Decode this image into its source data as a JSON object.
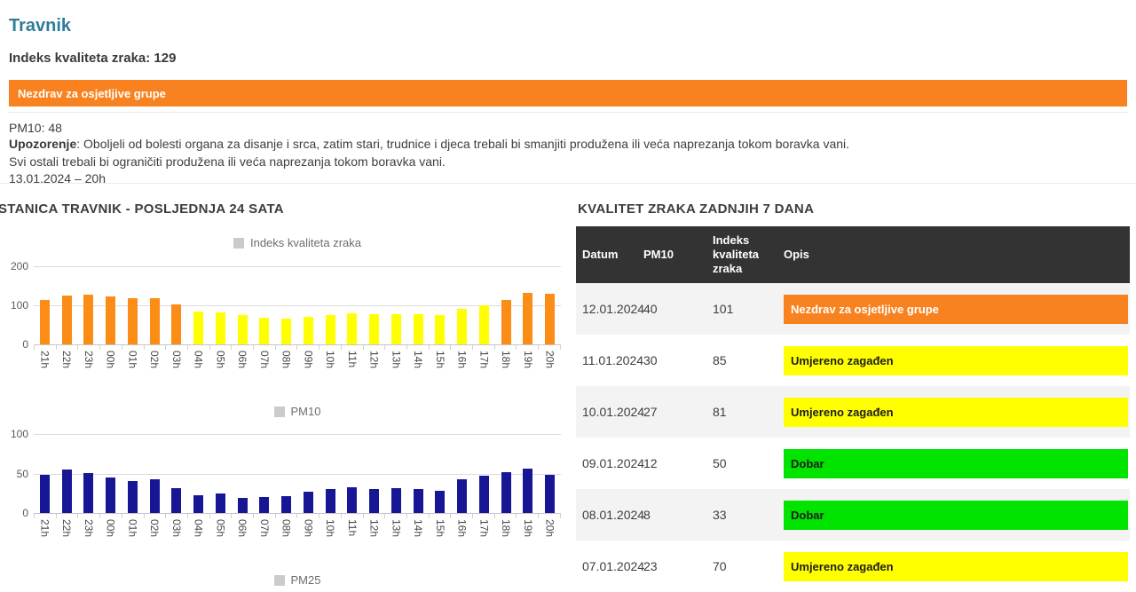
{
  "page": {
    "title": "Travnik",
    "index_label": "Indeks kvaliteta zraka: 129",
    "status_banner": "Nezdrav za osjetljive grupe",
    "pm10_line": "PM10: 48",
    "warning_label": "Upozorenje",
    "warning_text": ": Oboljeli od bolesti organa za disanje i srca, zatim stari, trudnice i djeca trebali bi smanjiti produžena ili veća naprezanja tokom boravka vani.",
    "warning_line2": "Svi ostali trebali bi ograničiti produžena ili veća naprezanja tokom boravka vani.",
    "timestamp": "13.01.2024 – 20h"
  },
  "charts_section": {
    "title": "STANICA TRAVNIK - POSLJEDNJA 24 SATA"
  },
  "chart_data": [
    {
      "type": "bar",
      "legend": "Indeks kvaliteta zraka",
      "x": [
        "21h",
        "22h",
        "23h",
        "00h",
        "01h",
        "02h",
        "03h",
        "04h",
        "05h",
        "06h",
        "07h",
        "08h",
        "09h",
        "10h",
        "11h",
        "12h",
        "13h",
        "14h",
        "15h",
        "16h",
        "17h",
        "18h",
        "19h",
        "20h"
      ],
      "values": [
        113,
        125,
        128,
        123,
        119,
        118,
        103,
        85,
        81,
        74,
        69,
        66,
        70,
        75,
        79,
        78,
        77,
        77,
        74,
        90,
        99,
        113,
        131,
        129
      ],
      "ylim": [
        0,
        200
      ],
      "yticks": [
        200,
        100,
        0
      ],
      "grid": true,
      "legend_position": "top",
      "color_rule": {
        "threshold": 100,
        "above": "bar_orange",
        "below": "bar_yellow"
      }
    },
    {
      "type": "bar",
      "legend": "PM10",
      "x": [
        "21h",
        "22h",
        "23h",
        "00h",
        "01h",
        "02h",
        "03h",
        "04h",
        "05h",
        "06h",
        "07h",
        "08h",
        "09h",
        "10h",
        "11h",
        "12h",
        "13h",
        "14h",
        "15h",
        "16h",
        "17h",
        "18h",
        "19h",
        "20h"
      ],
      "values": [
        48,
        55,
        50,
        45,
        40,
        43,
        31,
        23,
        25,
        19,
        20,
        21,
        27,
        30,
        33,
        30,
        31,
        30,
        28,
        43,
        47,
        52,
        56,
        48
      ],
      "ylim": [
        0,
        100
      ],
      "yticks": [
        100,
        50,
        0
      ],
      "grid": true,
      "legend_position": "top",
      "color": "bar_navy"
    },
    {
      "type": "bar",
      "legend": "PM25",
      "note": "chart cut off at bottom edge of viewport; only legend visible"
    }
  ],
  "table_section": {
    "title": "KVALITET ZRAKA ZADNJIH 7 DANA",
    "columns": [
      "Datum",
      "PM10",
      "Indeks kvaliteta zraka",
      "Opis"
    ],
    "rows": [
      {
        "date": "12.01.2024",
        "pm10": "40",
        "index": "101",
        "desc": "Nezdrav za osjetljive grupe",
        "level": "usg"
      },
      {
        "date": "11.01.2024",
        "pm10": "30",
        "index": "85",
        "desc": "Umjereno zagađen",
        "level": "moderate"
      },
      {
        "date": "10.01.2024",
        "pm10": "27",
        "index": "81",
        "desc": "Umjereno zagađen",
        "level": "moderate"
      },
      {
        "date": "09.01.2024",
        "pm10": "12",
        "index": "50",
        "desc": "Dobar",
        "level": "good"
      },
      {
        "date": "08.01.2024",
        "pm10": "8",
        "index": "33",
        "desc": "Dobar",
        "level": "good"
      },
      {
        "date": "07.01.2024",
        "pm10": "23",
        "index": "70",
        "desc": "Umjereno zagađen",
        "level": "moderate"
      }
    ]
  },
  "colors": {
    "heading_teal": "#2e7d96",
    "banner_orange": "#f8821f",
    "aqi_usg": "#f8821f",
    "aqi_moderate": "#ffff00",
    "aqi_good": "#00e400",
    "bar_orange": "#fb8c15",
    "bar_yellow": "#ffff00",
    "bar_navy": "#171796",
    "table_header_bg": "#333333",
    "row_stripe": "#f3f3f3",
    "legend_swatch": "#cbcbcb"
  }
}
